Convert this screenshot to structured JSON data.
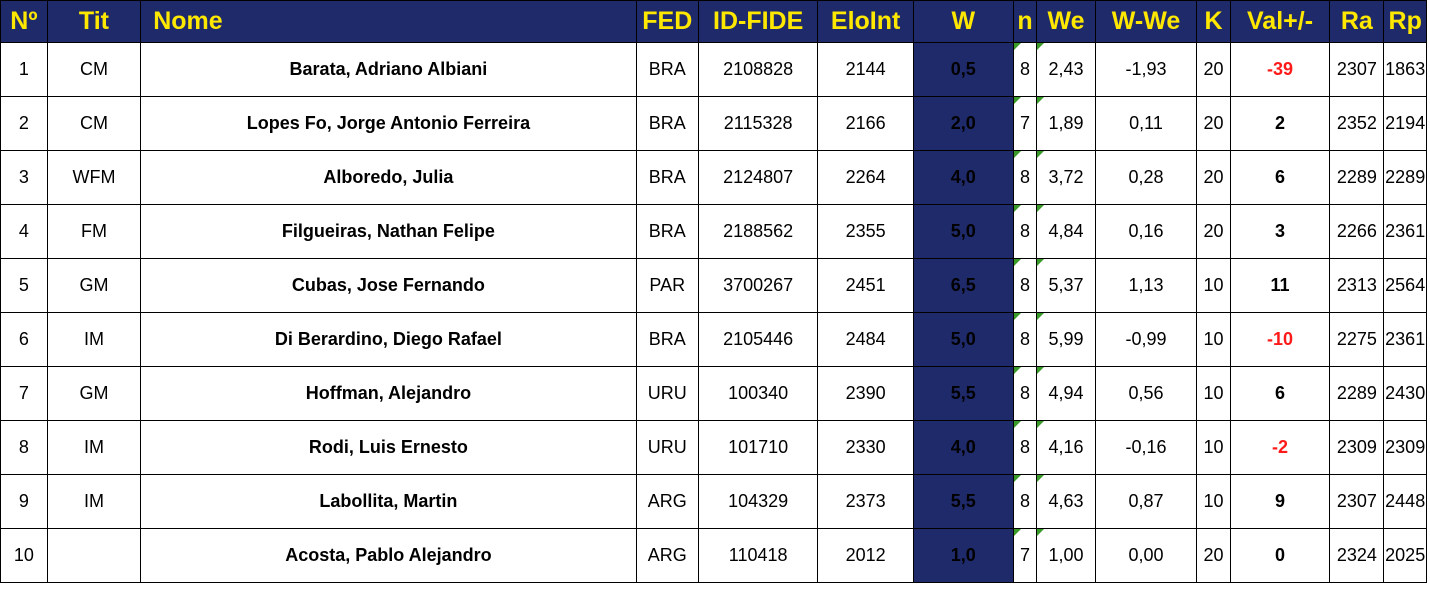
{
  "headers": {
    "num": "Nº",
    "tit": "Tit",
    "nome": "Nome",
    "fed": "FED",
    "idfide": "ID-FIDE",
    "eloint": "EloInt",
    "w": "W",
    "n": "n",
    "we": "We",
    "wwe": "W-We",
    "k": "K",
    "val": "Val+/-",
    "ra": "Ra",
    "rp": "Rp"
  },
  "colors": {
    "header_bg": "#1f2a6b",
    "header_text": "#ffe800",
    "negative": "#ff1a1a",
    "corner_mark": "#3a9a2a"
  },
  "rows": [
    {
      "num": "1",
      "tit": "CM",
      "nome": "Barata, Adriano Albiani",
      "fed": "BRA",
      "idfide": "2108828",
      "eloint": "2144",
      "w": "0,5",
      "n": "8",
      "we": "2,43",
      "wwe": "-1,93",
      "k": "20",
      "val": "-39",
      "ra": "2307",
      "rp": "1863"
    },
    {
      "num": "2",
      "tit": "CM",
      "nome": "Lopes Fo, Jorge Antonio Ferreira",
      "fed": "BRA",
      "idfide": "2115328",
      "eloint": "2166",
      "w": "2,0",
      "n": "7",
      "we": "1,89",
      "wwe": "0,11",
      "k": "20",
      "val": "2",
      "ra": "2352",
      "rp": "2194"
    },
    {
      "num": "3",
      "tit": "WFM",
      "nome": "Alboredo, Julia",
      "fed": "BRA",
      "idfide": "2124807",
      "eloint": "2264",
      "w": "4,0",
      "n": "8",
      "we": "3,72",
      "wwe": "0,28",
      "k": "20",
      "val": "6",
      "ra": "2289",
      "rp": "2289"
    },
    {
      "num": "4",
      "tit": "FM",
      "nome": "Filgueiras, Nathan Felipe",
      "fed": "BRA",
      "idfide": "2188562",
      "eloint": "2355",
      "w": "5,0",
      "n": "8",
      "we": "4,84",
      "wwe": "0,16",
      "k": "20",
      "val": "3",
      "ra": "2266",
      "rp": "2361"
    },
    {
      "num": "5",
      "tit": "GM",
      "nome": "Cubas, Jose Fernando",
      "fed": "PAR",
      "idfide": "3700267",
      "eloint": "2451",
      "w": "6,5",
      "n": "8",
      "we": "5,37",
      "wwe": "1,13",
      "k": "10",
      "val": "11",
      "ra": "2313",
      "rp": "2564"
    },
    {
      "num": "6",
      "tit": "IM",
      "nome": "Di Berardino, Diego Rafael",
      "fed": "BRA",
      "idfide": "2105446",
      "eloint": "2484",
      "w": "5,0",
      "n": "8",
      "we": "5,99",
      "wwe": "-0,99",
      "k": "10",
      "val": "-10",
      "ra": "2275",
      "rp": "2361"
    },
    {
      "num": "7",
      "tit": "GM",
      "nome": "Hoffman, Alejandro",
      "fed": "URU",
      "idfide": "100340",
      "eloint": "2390",
      "w": "5,5",
      "n": "8",
      "we": "4,94",
      "wwe": "0,56",
      "k": "10",
      "val": "6",
      "ra": "2289",
      "rp": "2430"
    },
    {
      "num": "8",
      "tit": "IM",
      "nome": "Rodi, Luis Ernesto",
      "fed": "URU",
      "idfide": "101710",
      "eloint": "2330",
      "w": "4,0",
      "n": "8",
      "we": "4,16",
      "wwe": "-0,16",
      "k": "10",
      "val": "-2",
      "ra": "2309",
      "rp": "2309"
    },
    {
      "num": "9",
      "tit": "IM",
      "nome": "Labollita, Martin",
      "fed": "ARG",
      "idfide": "104329",
      "eloint": "2373",
      "w": "5,5",
      "n": "8",
      "we": "4,63",
      "wwe": "0,87",
      "k": "10",
      "val": "9",
      "ra": "2307",
      "rp": "2448"
    },
    {
      "num": "10",
      "tit": "",
      "nome": "Acosta, Pablo Alejandro",
      "fed": "ARG",
      "idfide": "110418",
      "eloint": "2012",
      "w": "1,0",
      "n": "7",
      "we": "1,00",
      "wwe": "0,00",
      "k": "20",
      "val": "0",
      "ra": "2324",
      "rp": "2025"
    }
  ]
}
